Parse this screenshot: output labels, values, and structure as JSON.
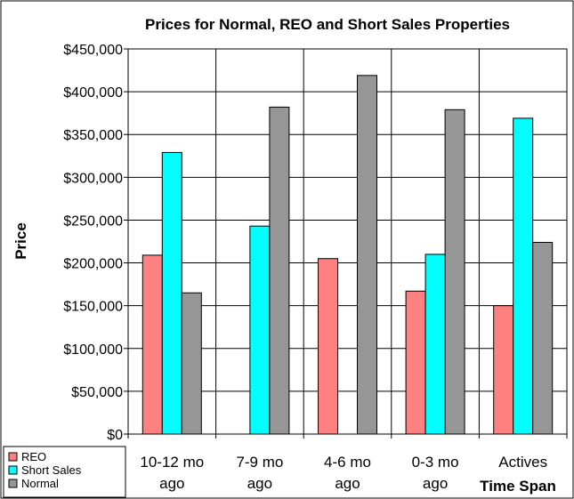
{
  "chart_data": {
    "type": "bar",
    "title": "Prices for Normal, REO and Short  Sales Properties",
    "xlabel": "Time Span",
    "ylabel": "Price",
    "categories": [
      [
        "10-12 mo",
        "ago"
      ],
      [
        "7-9 mo",
        "ago"
      ],
      [
        "4-6 mo",
        "ago"
      ],
      [
        "0-3 mo",
        "ago"
      ],
      [
        "Actives"
      ]
    ],
    "ylim": [
      0,
      450000
    ],
    "yticks": [
      "$0",
      "$50,000",
      "$100,000",
      "$150,000",
      "$200,000",
      "$250,000",
      "$300,000",
      "$350,000",
      "$400,000",
      "$450,000"
    ],
    "grid": true,
    "legend_position": "bottom-left",
    "series": [
      {
        "name": "REO",
        "color": "#ff8080",
        "values": [
          209000,
          null,
          205000,
          167000,
          150000
        ]
      },
      {
        "name": "Short Sales",
        "color": "#00ffff",
        "values": [
          329000,
          243000,
          null,
          210000,
          369000
        ]
      },
      {
        "name": "Normal",
        "color": "#969696",
        "values": [
          165000,
          382000,
          419000,
          379000,
          224000
        ]
      }
    ]
  }
}
